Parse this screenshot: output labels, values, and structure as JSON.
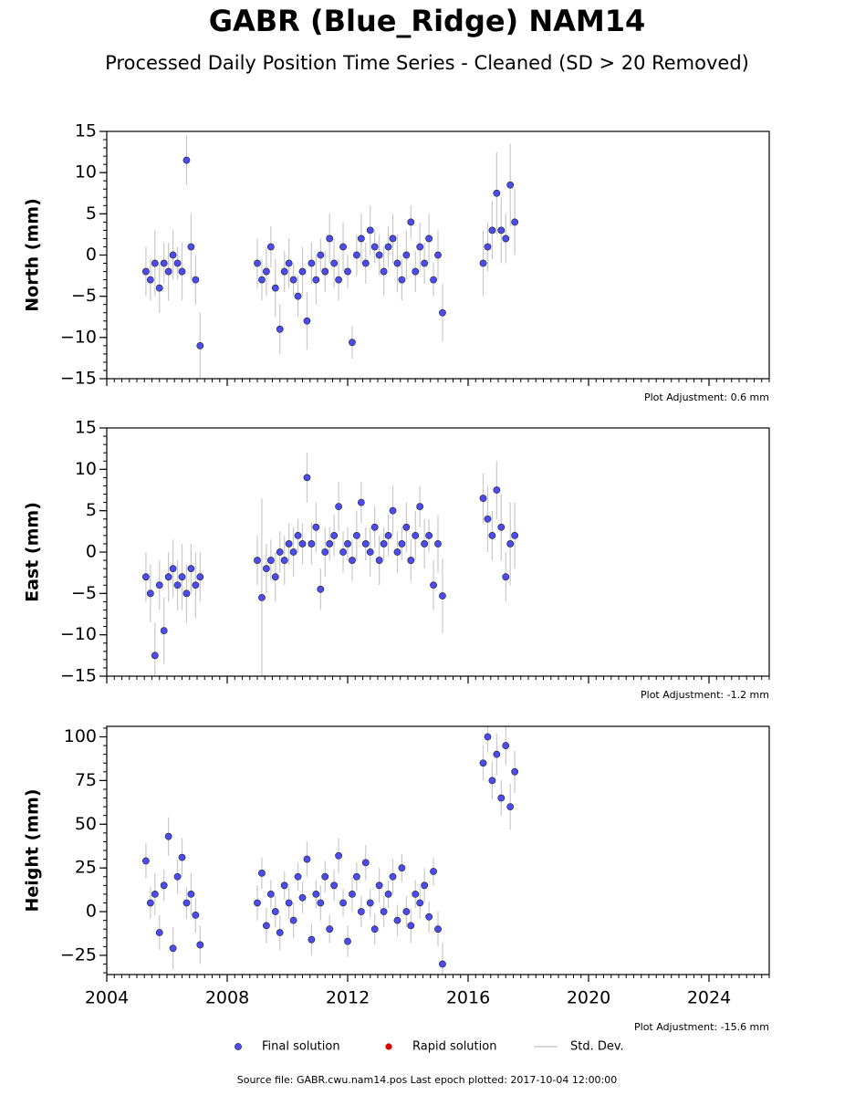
{
  "title": "GABR (Blue_Ridge) NAM14",
  "subtitle": "Processed Daily Position Time Series - Cleaned (SD > 20 Removed)",
  "legend": [
    {
      "name": "Final solution",
      "color": "#4b4bf2",
      "kind": "marker"
    },
    {
      "name": "Rapid solution",
      "color": "#dd0000",
      "kind": "marker"
    },
    {
      "name": "Std. Dev.",
      "color": "#c8c8c8",
      "kind": "line"
    }
  ],
  "footer": "Source file: GABR.cwu.nam14.pos  Last epoch plotted: 2017-10-04 12:00:00",
  "chart_data": [
    {
      "type": "scatter",
      "ylabel": "North (mm)",
      "annotation": "Plot Adjustment: 0.6 mm",
      "xlim": [
        2004,
        2026
      ],
      "xticks": [
        2004,
        2008,
        2012,
        2016,
        2020,
        2024
      ],
      "show_xtick_labels": false,
      "ylim": [
        -15,
        15
      ],
      "yticks": [
        {
          "value": -15,
          "label": "−15"
        },
        {
          "value": -10,
          "label": "−10"
        },
        {
          "value": -5,
          "label": "−5"
        },
        0,
        5,
        10,
        15
      ],
      "x": [
        2005.3,
        2005.45,
        2005.6,
        2005.75,
        2005.9,
        2006.05,
        2006.2,
        2006.35,
        2006.5,
        2006.65,
        2006.8,
        2006.95,
        2007.1,
        2009.0,
        2009.15,
        2009.3,
        2009.45,
        2009.6,
        2009.75,
        2009.9,
        2010.05,
        2010.2,
        2010.35,
        2010.5,
        2010.65,
        2010.8,
        2010.95,
        2011.1,
        2011.25,
        2011.4,
        2011.55,
        2011.7,
        2011.85,
        2012.0,
        2012.15,
        2012.3,
        2012.45,
        2012.6,
        2012.75,
        2012.9,
        2013.05,
        2013.2,
        2013.35,
        2013.5,
        2013.65,
        2013.8,
        2013.95,
        2014.1,
        2014.25,
        2014.4,
        2014.55,
        2014.7,
        2014.85,
        2015.0,
        2015.15,
        2016.5,
        2016.65,
        2016.8,
        2016.95,
        2017.1,
        2017.25,
        2017.4,
        2017.55
      ],
      "series": [
        {
          "name": "Final solution",
          "color": "#4b4bf2",
          "values": [
            -2,
            -3,
            -1,
            -4,
            -1,
            -2,
            0,
            -1,
            -2,
            11.5,
            1,
            -3,
            -11,
            -1,
            -3,
            -2,
            1,
            -4,
            -9,
            -2,
            -1,
            -3,
            -5,
            -2,
            -8,
            -1,
            -3,
            0,
            -2,
            2,
            -1,
            -3,
            1,
            -2,
            -10.6,
            0,
            2,
            -1,
            3,
            1,
            0,
            -2,
            1,
            2,
            -1,
            -3,
            0,
            4,
            -2,
            1,
            -1,
            2,
            -3,
            0,
            -7,
            -1,
            1,
            3,
            7.5,
            3,
            2,
            8.5,
            4
          ],
          "errors": [
            3,
            2.5,
            4,
            3,
            2.5,
            3.5,
            3,
            2,
            3.5,
            3,
            4,
            3,
            4,
            3,
            2.5,
            3,
            2.5,
            3.5,
            3,
            2.5,
            3,
            2,
            2.5,
            3,
            3.5,
            2.5,
            3,
            2,
            2.5,
            3,
            3,
            2.5,
            3,
            2,
            2,
            2.5,
            3,
            2.5,
            3,
            2,
            2.5,
            3,
            2.5,
            3,
            3.5,
            2.5,
            3,
            2,
            2.5,
            3,
            2.5,
            3,
            2,
            3,
            3.5,
            4,
            3,
            3.5,
            5,
            4,
            3,
            5,
            4
          ]
        }
      ]
    },
    {
      "type": "scatter",
      "ylabel": "East (mm)",
      "annotation": "Plot Adjustment: -1.2 mm",
      "xlim": [
        2004,
        2026
      ],
      "xticks": [
        2004,
        2008,
        2012,
        2016,
        2020,
        2024
      ],
      "show_xtick_labels": false,
      "ylim": [
        -15,
        15
      ],
      "yticks": [
        {
          "value": -15,
          "label": "−15"
        },
        {
          "value": -10,
          "label": "−10"
        },
        {
          "value": -5,
          "label": "−5"
        },
        0,
        5,
        10,
        15
      ],
      "x": [
        2005.3,
        2005.45,
        2005.6,
        2005.75,
        2005.9,
        2006.05,
        2006.2,
        2006.35,
        2006.5,
        2006.65,
        2006.8,
        2006.95,
        2007.1,
        2009.0,
        2009.15,
        2009.3,
        2009.45,
        2009.6,
        2009.75,
        2009.9,
        2010.05,
        2010.2,
        2010.35,
        2010.5,
        2010.65,
        2010.8,
        2010.95,
        2011.1,
        2011.25,
        2011.4,
        2011.55,
        2011.7,
        2011.85,
        2012.0,
        2012.15,
        2012.3,
        2012.45,
        2012.6,
        2012.75,
        2012.9,
        2013.05,
        2013.2,
        2013.35,
        2013.5,
        2013.65,
        2013.8,
        2013.95,
        2014.1,
        2014.25,
        2014.4,
        2014.55,
        2014.7,
        2014.85,
        2015.0,
        2015.15,
        2016.5,
        2016.65,
        2016.8,
        2016.95,
        2017.1,
        2017.25,
        2017.4,
        2017.55
      ],
      "series": [
        {
          "name": "Final solution",
          "color": "#4b4bf2",
          "values": [
            -3,
            -5,
            -12.5,
            -4,
            -9.5,
            -3,
            -2,
            -4,
            -3,
            -5,
            -2,
            -4,
            -3,
            -1,
            -5.5,
            -2,
            -1,
            -3,
            0,
            -1,
            1,
            0,
            2,
            1,
            9,
            1,
            3,
            -4.5,
            0,
            1,
            2,
            5.5,
            0,
            1,
            -1,
            2,
            6,
            1,
            0,
            3,
            -1,
            1,
            2,
            5,
            0,
            1,
            3,
            -1,
            2,
            5.5,
            1,
            2,
            -4,
            1,
            -5.3,
            6.5,
            4,
            2,
            7.5,
            3,
            -3,
            1,
            2
          ],
          "errors": [
            3,
            3.5,
            4,
            3,
            4,
            3,
            3.5,
            3,
            4,
            3.5,
            3,
            4,
            3,
            3,
            12,
            3,
            2.5,
            3,
            2.5,
            3,
            2.5,
            3,
            2,
            2.5,
            3,
            2.5,
            3,
            2.5,
            3,
            2,
            2.5,
            3,
            2.5,
            2,
            2.5,
            3,
            2.5,
            2,
            3,
            2.5,
            3,
            2,
            2.5,
            3,
            2.5,
            2,
            3,
            2.5,
            3,
            2.5,
            3,
            2,
            3,
            3.5,
            4.5,
            3,
            4,
            3,
            3.5,
            4,
            3,
            5,
            4
          ]
        }
      ]
    },
    {
      "type": "scatter",
      "ylabel": "Height (mm)",
      "annotation": "Plot Adjustment: -15.6 mm",
      "xlim": [
        2004,
        2026
      ],
      "xticks": [
        2004,
        2008,
        2012,
        2016,
        2020,
        2024
      ],
      "show_xtick_labels": true,
      "ylim": [
        -36,
        106
      ],
      "yticks": [
        {
          "value": -25,
          "label": "−25"
        },
        0,
        25,
        50,
        75,
        100
      ],
      "x": [
        2005.3,
        2005.45,
        2005.6,
        2005.75,
        2005.9,
        2006.05,
        2006.2,
        2006.35,
        2006.5,
        2006.65,
        2006.8,
        2006.95,
        2007.1,
        2009.0,
        2009.15,
        2009.3,
        2009.45,
        2009.6,
        2009.75,
        2009.9,
        2010.05,
        2010.2,
        2010.35,
        2010.5,
        2010.65,
        2010.8,
        2010.95,
        2011.1,
        2011.25,
        2011.4,
        2011.55,
        2011.7,
        2011.85,
        2012.0,
        2012.15,
        2012.3,
        2012.45,
        2012.6,
        2012.75,
        2012.9,
        2013.05,
        2013.2,
        2013.35,
        2013.5,
        2013.65,
        2013.8,
        2013.95,
        2014.1,
        2014.25,
        2014.4,
        2014.55,
        2014.7,
        2014.85,
        2015.0,
        2015.15,
        2016.5,
        2016.65,
        2016.8,
        2016.95,
        2017.1,
        2017.25,
        2017.4,
        2017.55
      ],
      "series": [
        {
          "name": "Final solution",
          "color": "#4b4bf2",
          "values": [
            29,
            5,
            10,
            -12,
            15,
            43,
            -21,
            20,
            31,
            5,
            10,
            -2,
            -19,
            5,
            22,
            -8,
            10,
            0,
            -12,
            15,
            5,
            -5,
            20,
            8,
            30,
            -16,
            10,
            5,
            20,
            -10,
            15,
            32,
            5,
            -17,
            10,
            20,
            0,
            28,
            5,
            -10,
            15,
            0,
            10,
            20,
            -5,
            25,
            0,
            -8,
            10,
            5,
            15,
            -3,
            23,
            -10,
            -30,
            85,
            100,
            75,
            90,
            65,
            95,
            60,
            80
          ],
          "errors": [
            10,
            9,
            12,
            10,
            9,
            11,
            12,
            10,
            11,
            9,
            12,
            10,
            11,
            10,
            9,
            10,
            8,
            9,
            10,
            8,
            9,
            10,
            8,
            9,
            10,
            9,
            8,
            10,
            9,
            8,
            9,
            10,
            8,
            9,
            10,
            8,
            9,
            10,
            8,
            9,
            10,
            9,
            8,
            10,
            9,
            8,
            9,
            10,
            8,
            9,
            10,
            9,
            8,
            10,
            12,
            10,
            9,
            11,
            12,
            10,
            11,
            13,
            12
          ]
        }
      ]
    }
  ]
}
